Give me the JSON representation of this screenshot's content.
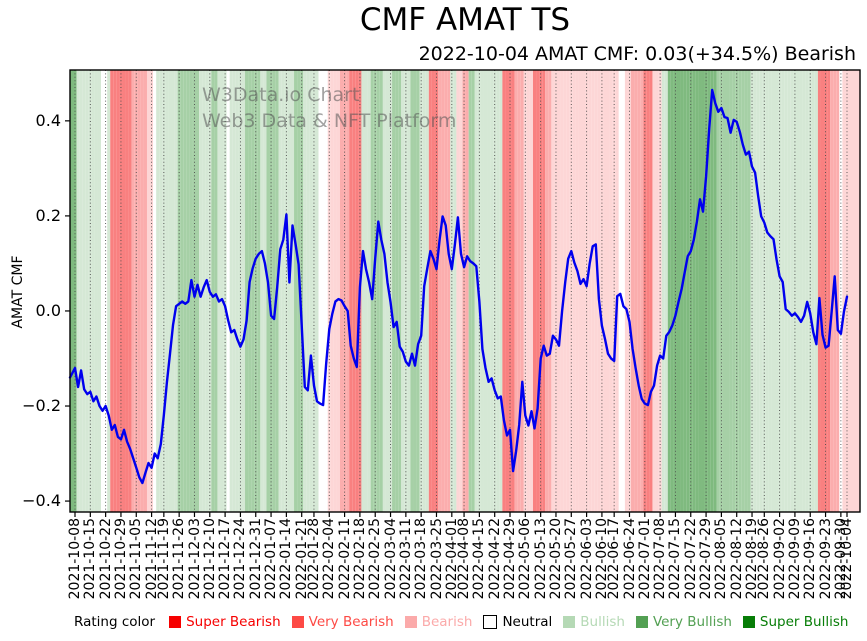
{
  "chart_data": {
    "type": "line",
    "title": "CMF AMAT TS",
    "subtitle": "2022-10-04 AMAT CMF: 0.03(+34.5%) Bearish",
    "ylabel": "AMAT CMF",
    "xlabel": "",
    "watermark_line1": "W3Data.io Chart",
    "watermark_line2": "Web3 Data & NFT Platform",
    "ylim": [
      -0.423,
      0.507
    ],
    "grid": "vertical-dotted-weekly",
    "legend_position": "bottom",
    "y_tick_labels": [
      "0.4",
      "0.2",
      "0.0",
      "−0.2",
      "−0.4"
    ],
    "y_tick_values": [
      0.4,
      0.2,
      0.0,
      -0.2,
      -0.4
    ],
    "x_tick_labels": [
      "2021-10-08",
      "2021-10-15",
      "2021-10-22",
      "2021-10-29",
      "2021-11-05",
      "2021-11-12",
      "2021-11-19",
      "2021-11-26",
      "2021-12-03",
      "2021-12-10",
      "2021-12-17",
      "2021-12-24",
      "2021-12-31",
      "2022-01-07",
      "2022-01-14",
      "2022-01-21",
      "2022-01-28",
      "2022-02-04",
      "2022-02-11",
      "2022-02-18",
      "2022-02-25",
      "2022-03-04",
      "2022-03-11",
      "2022-03-18",
      "2022-03-25",
      "2022-04-01",
      "2022-04-08",
      "2022-04-15",
      "2022-04-22",
      "2022-04-29",
      "2022-05-06",
      "2022-05-13",
      "2022-05-20",
      "2022-05-27",
      "2022-06-03",
      "2022-06-10",
      "2022-06-17",
      "2022-06-24",
      "2022-07-01",
      "2022-07-08",
      "2022-07-15",
      "2022-07-22",
      "2022-07-29",
      "2022-08-05",
      "2022-08-12",
      "2022-08-19",
      "2022-08-26",
      "2022-09-02",
      "2022-09-09",
      "2022-09-16",
      "2022-09-23",
      "2022-09-30",
      "2022-10-04"
    ],
    "series": [
      {
        "name": "AMAT CMF",
        "color": "#0000ee",
        "values": [
          -0.12,
          -0.16,
          -0.125,
          -0.165,
          -0.175,
          -0.17,
          -0.19,
          -0.18,
          -0.2,
          -0.21,
          -0.2,
          -0.22,
          -0.25,
          -0.24,
          -0.265,
          -0.27,
          -0.25,
          -0.275,
          -0.29,
          -0.31,
          -0.33,
          -0.35,
          -0.362,
          -0.34,
          -0.32,
          -0.33,
          -0.3,
          -0.31,
          -0.28,
          -0.22,
          -0.15,
          -0.09,
          -0.03,
          0.01,
          0.015,
          0.02,
          0.015,
          0.02,
          0.065,
          0.03,
          0.055,
          0.03,
          0.05,
          0.065,
          0.04,
          0.03,
          0.035,
          0.02,
          0.025,
          0.01,
          -0.02,
          -0.045,
          -0.04,
          -0.06,
          -0.075,
          -0.06,
          -0.02,
          0.061,
          0.09,
          0.11,
          0.12,
          0.126,
          0.1,
          0.06,
          -0.01,
          -0.017,
          0.05,
          0.13,
          0.15,
          0.203,
          0.06,
          0.18,
          0.14,
          0.098,
          -0.03,
          -0.16,
          -0.167,
          -0.094,
          -0.157,
          -0.19,
          -0.195,
          -0.198,
          -0.11,
          -0.038,
          -0.006,
          0.02,
          0.025,
          0.022,
          0.01,
          0.0,
          -0.073,
          -0.1,
          -0.118,
          0.05,
          0.126,
          0.088,
          0.06,
          0.025,
          0.11,
          0.188,
          0.15,
          0.12,
          0.06,
          0.019,
          -0.034,
          -0.023,
          -0.075,
          -0.086,
          -0.107,
          -0.115,
          -0.09,
          -0.115,
          -0.07,
          -0.052,
          0.052,
          0.09,
          0.126,
          0.11,
          0.088,
          0.15,
          0.199,
          0.18,
          0.12,
          0.088,
          0.14,
          0.197,
          0.12,
          0.092,
          0.115,
          0.105,
          0.1,
          0.094,
          0.019,
          -0.08,
          -0.12,
          -0.149,
          -0.142,
          -0.167,
          -0.184,
          -0.18,
          -0.23,
          -0.262,
          -0.25,
          -0.337,
          -0.295,
          -0.24,
          -0.149,
          -0.22,
          -0.241,
          -0.211,
          -0.247,
          -0.205,
          -0.1,
          -0.073,
          -0.094,
          -0.09,
          -0.052,
          -0.06,
          -0.073,
          0.0,
          0.06,
          0.11,
          0.126,
          0.102,
          0.084,
          0.057,
          0.067,
          0.052,
          0.1,
          0.136,
          0.14,
          0.025,
          -0.031,
          -0.059,
          -0.09,
          -0.1,
          -0.105,
          0.031,
          0.036,
          0.01,
          0.004,
          -0.023,
          -0.08,
          -0.12,
          -0.157,
          -0.185,
          -0.195,
          -0.198,
          -0.17,
          -0.157,
          -0.115,
          -0.094,
          -0.1,
          -0.052,
          -0.044,
          -0.03,
          -0.01,
          0.019,
          0.046,
          0.08,
          0.115,
          0.126,
          0.15,
          0.188,
          0.235,
          0.209,
          0.283,
          0.38,
          0.465,
          0.437,
          0.419,
          0.427,
          0.408,
          0.406,
          0.375,
          0.402,
          0.398,
          0.377,
          0.35,
          0.329,
          0.335,
          0.304,
          0.291,
          0.241,
          0.199,
          0.186,
          0.165,
          0.157,
          0.151,
          0.109,
          0.073,
          0.061,
          0.004,
          -0.002,
          -0.01,
          -0.005,
          -0.013,
          -0.023,
          -0.01,
          0.019,
          -0.005,
          -0.045,
          -0.07,
          0.027,
          -0.05,
          -0.077,
          -0.073,
          0.0,
          0.073,
          -0.04,
          -0.048,
          -0.002,
          0.03
        ]
      }
    ],
    "daily_ratings": [
      "SU",
      "BU",
      "BU",
      "BU",
      "BU",
      "BU",
      "BU",
      "BU",
      "BU",
      "N",
      "N",
      "BU",
      "SB",
      "SB",
      "SB",
      "SB",
      "SB",
      "SB",
      "SB",
      "VB",
      "VB",
      "VB",
      "VB",
      "VB",
      "B",
      "B",
      "N",
      "BU",
      "BU",
      "BU",
      "BU",
      "BU",
      "BU",
      "BU",
      "VU",
      "VU",
      "VU",
      "VU",
      "VU",
      "VU",
      "VU",
      "BU",
      "BU",
      "BU",
      "BU",
      "VU",
      "VU",
      "BU",
      "BU",
      "BU",
      "N",
      "BU",
      "BU",
      "BU",
      "BU",
      "BU",
      "VU",
      "VU",
      "VU",
      "VU",
      "VU",
      "BU",
      "BU",
      "VU",
      "VU",
      "VU",
      "VU",
      "BU",
      "BU",
      "BU",
      "BU",
      "BU",
      "VU",
      "VU",
      "VU",
      "BU",
      "BU",
      "BU",
      "BU",
      "BU",
      "N",
      "N",
      "N",
      "B",
      "B",
      "B",
      "B",
      "VB",
      "VB",
      "VB",
      "SB",
      "SB",
      "SB",
      "SB",
      "BU",
      "BU",
      "BU",
      "VU",
      "VU",
      "VU",
      "VU",
      "BU",
      "BU",
      "BU",
      "VU",
      "VU",
      "VU",
      "BU",
      "BU",
      "BU",
      "VU",
      "VU",
      "VU",
      "BU",
      "BU",
      "BU",
      "SB",
      "SB",
      "SB",
      "VB",
      "VB",
      "VB",
      "VB",
      "BU",
      "BU",
      "B",
      "B",
      "VB",
      "VB",
      "VU",
      "VU",
      "BU",
      "BU",
      "BU",
      "BU",
      "BU",
      "BU",
      "BU",
      "BU",
      "BU",
      "SB",
      "SB",
      "SB",
      "SB",
      "VB",
      "VB",
      "VB",
      "B",
      "B",
      "B",
      "SB",
      "SB",
      "SB",
      "SB",
      "VB",
      "VB",
      "B",
      "B",
      "B",
      "B",
      "B",
      "B",
      "B",
      "B",
      "B",
      "B",
      "B",
      "B",
      "B",
      "B",
      "B",
      "B",
      "B",
      "B",
      "B",
      "B",
      "B",
      "B",
      "N",
      "N",
      "B",
      "B",
      "VB",
      "VB",
      "VB",
      "VB",
      "SB",
      "SB",
      "SB",
      "B",
      "B",
      "B",
      "BU",
      "BU",
      "SU",
      "SU",
      "SU",
      "SU",
      "SU",
      "SU",
      "SU",
      "SU",
      "SU",
      "SU",
      "SU",
      "SU",
      "SU",
      "SU",
      "SU",
      "SU",
      "VU",
      "VU",
      "VU",
      "VU",
      "VU",
      "VU",
      "VU",
      "VU",
      "VU",
      "VU",
      "VU",
      "BU",
      "BU",
      "BU",
      "BU",
      "BU",
      "BU",
      "BU",
      "BU",
      "BU",
      "BU",
      "BU",
      "BU",
      "BU",
      "BU",
      "BU",
      "BU",
      "BU",
      "BU",
      "BU",
      "BU",
      "BU",
      "BU",
      "SB",
      "SB",
      "SB",
      "SB",
      "VB",
      "VB",
      "VB",
      "N",
      "B",
      "B"
    ],
    "rating_codes": {
      "SB": "Super Bearish",
      "VB": "Very Bearish",
      "B": "Bearish",
      "N": "Neutral",
      "BU": "Bullish",
      "VU": "Very Bullish",
      "SU": "Super Bullish"
    },
    "rating_band_colors": {
      "SB": "#f98080",
      "VB": "#fbadad",
      "B": "#fdd6d6",
      "N": "#ffffff",
      "BU": "#d5e8d5",
      "VU": "#a6d0a6",
      "SU": "#7fba7f"
    }
  },
  "legend": {
    "label": "Rating color",
    "items": [
      {
        "label": "Super Bearish",
        "color": "#f60000",
        "text_color": "#f60000",
        "border": false
      },
      {
        "label": "Very Bearish",
        "color": "#fd4a45",
        "text_color": "#fd4a45",
        "border": false
      },
      {
        "label": "Bearish",
        "color": "#fbaaaa",
        "text_color": "#fbaaaa",
        "border": false
      },
      {
        "label": "Neutral",
        "color": "#ffffff",
        "text_color": "#000000",
        "border": true
      },
      {
        "label": "Bullish",
        "color": "#b5d9b5",
        "text_color": "#b5d9b5",
        "border": false
      },
      {
        "label": "Very Bullish",
        "color": "#53a053",
        "text_color": "#53a053",
        "border": false
      },
      {
        "label": "Super Bullish",
        "color": "#077d07",
        "text_color": "#077d07",
        "border": false
      }
    ]
  }
}
